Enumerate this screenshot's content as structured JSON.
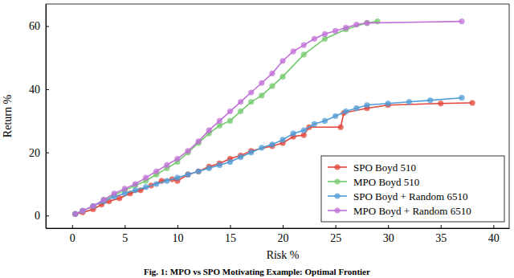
{
  "chart_data": {
    "type": "line",
    "x_label": "Risk %",
    "y_label": "Return %",
    "caption": "Fig. 1: MPO vs SPO Motivating Example: Optimal Frontier",
    "xlim": [
      -2.5,
      41.5
    ],
    "ylim": [
      -4,
      67
    ],
    "xticks": [
      0,
      5,
      10,
      15,
      20,
      25,
      30,
      35,
      40
    ],
    "yticks": [
      0,
      20,
      40,
      60
    ],
    "legend": "lower right",
    "marker": "circle",
    "series": [
      {
        "name": "SPO Boyd 510",
        "color": "#e2443a",
        "x": [
          0.3,
          1,
          2,
          2.8,
          3.5,
          4.5,
          5.5,
          6.5,
          7.5,
          8.5,
          9.5,
          10,
          11,
          12,
          13,
          14,
          15,
          16,
          17,
          19,
          20,
          21,
          22,
          22.5,
          25.5,
          25.8,
          28,
          30,
          35,
          38
        ],
        "values": [
          0.5,
          1,
          2,
          3.5,
          4.5,
          5.5,
          7,
          8,
          9.5,
          11,
          11.5,
          11,
          13,
          14,
          15.5,
          16.5,
          18,
          19,
          20.5,
          22,
          23,
          25,
          25.5,
          28,
          28,
          32.5,
          34,
          35,
          35.5,
          35.7
        ]
      },
      {
        "name": "MPO Boyd 510",
        "color": "#74c96e",
        "x": [
          0.3,
          1,
          2,
          3,
          4,
          5,
          6,
          7,
          8,
          9,
          10,
          11,
          12,
          13,
          14,
          15,
          16,
          17,
          18,
          19,
          20,
          22,
          24,
          26,
          28,
          29
        ],
        "values": [
          0.5,
          1.5,
          3,
          5,
          6.5,
          8,
          9.5,
          11,
          13,
          15,
          17,
          20,
          23,
          26,
          28.5,
          30,
          33,
          36,
          38,
          41,
          44,
          51,
          56,
          59,
          61,
          61.5
        ]
      },
      {
        "name": "SPO Boyd + Random 6510",
        "color": "#4f9bd6",
        "x": [
          0.3,
          1,
          2,
          3,
          4,
          5,
          6,
          7,
          8,
          9,
          10,
          11,
          12,
          13,
          14,
          15,
          16,
          17,
          18,
          19,
          20,
          21,
          22,
          23,
          24,
          25,
          26,
          27,
          28,
          30,
          32,
          34,
          37
        ],
        "values": [
          0.5,
          1.5,
          3,
          4.5,
          6,
          7,
          8,
          9,
          10,
          11,
          12,
          13,
          14,
          15,
          16,
          17,
          18.5,
          20,
          21.5,
          22.5,
          24,
          26,
          27,
          29,
          30,
          31.5,
          33,
          34,
          35,
          35.5,
          36,
          36.5,
          37.3
        ]
      },
      {
        "name": "MPO Boyd + Random 6510",
        "color": "#c070d6",
        "x": [
          0.3,
          1,
          2,
          3,
          4,
          5,
          6,
          7,
          8,
          9,
          10,
          11,
          12,
          13,
          14,
          15,
          16,
          17,
          18,
          19,
          20,
          21,
          22,
          23,
          24,
          25,
          26,
          27,
          28,
          37
        ],
        "values": [
          0.5,
          1.5,
          3,
          5,
          7,
          8.5,
          10,
          12,
          14,
          16,
          18,
          20.5,
          23.5,
          27,
          30,
          33,
          36,
          39,
          42,
          45,
          49,
          52,
          54,
          56,
          57.5,
          58.5,
          59.5,
          60.5,
          61,
          61.5
        ]
      }
    ]
  }
}
